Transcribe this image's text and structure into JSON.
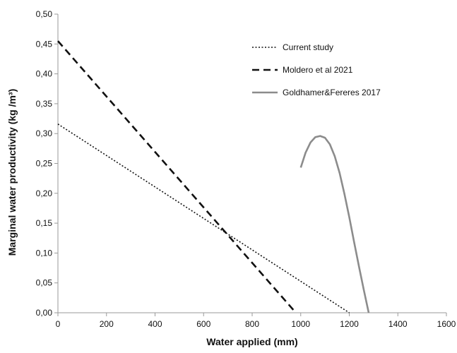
{
  "chart_data": {
    "type": "line",
    "xlabel": "Water applied (mm)",
    "ylabel": "Marginal water productivity (kg /m³)",
    "xlim": [
      0,
      1600
    ],
    "ylim": [
      0,
      0.5
    ],
    "x_ticks": [
      0,
      200,
      400,
      600,
      800,
      1000,
      1200,
      1400,
      1600
    ],
    "y_ticks": [
      0,
      0.05,
      0.1,
      0.15,
      0.2,
      0.25,
      0.3,
      0.35,
      0.4,
      0.45,
      0.5
    ],
    "x_tick_labels": [
      "0",
      "200",
      "400",
      "600",
      "800",
      "1000",
      "1200",
      "1400",
      "1600"
    ],
    "y_tick_labels": [
      "0,00",
      "0,05",
      "0,10",
      "0,15",
      "0,20",
      "0,25",
      "0,30",
      "0,35",
      "0,40",
      "0,45",
      "0,50"
    ],
    "legend_position": "top-right",
    "grid": false,
    "series": [
      {
        "name": "Current study",
        "style": "dotted",
        "color": "#111111",
        "x": [
          0,
          1200
        ],
        "y": [
          0.316,
          0.0
        ]
      },
      {
        "name": "Moldero et al 2021",
        "style": "dashed",
        "color": "#111111",
        "x": [
          0,
          980
        ],
        "y": [
          0.455,
          0.0
        ]
      },
      {
        "name": "Goldhamer&Fereres 2017",
        "style": "solid",
        "color": "#8c8c8c",
        "x": [
          1000,
          1020,
          1040,
          1060,
          1080,
          1100,
          1120,
          1140,
          1160,
          1180,
          1200,
          1220,
          1240,
          1260,
          1280
        ],
        "y": [
          0.243,
          0.268,
          0.285,
          0.294,
          0.296,
          0.293,
          0.282,
          0.262,
          0.234,
          0.199,
          0.16,
          0.118,
          0.077,
          0.038,
          0.0
        ]
      }
    ]
  }
}
